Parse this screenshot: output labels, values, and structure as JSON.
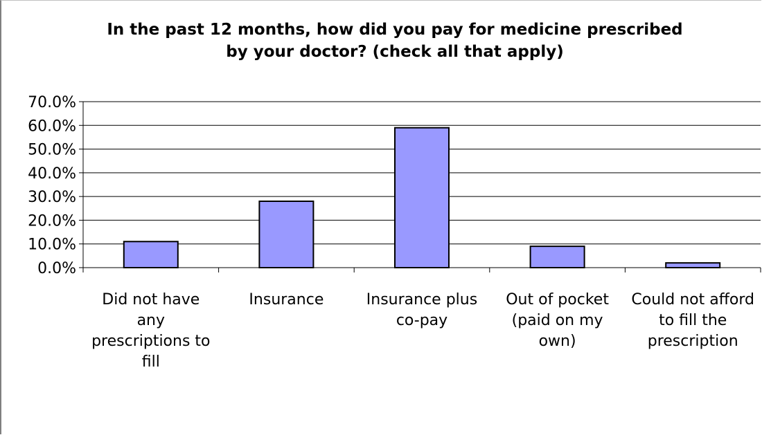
{
  "chart_data": {
    "type": "bar",
    "title": "In the past 12 months, how did you pay for medicine prescribed\nby your doctor? (check all that apply)",
    "categories": [
      [
        "Did not have",
        "any",
        "prescriptions to",
        "fill"
      ],
      [
        "Insurance"
      ],
      [
        "Insurance plus",
        "co-pay"
      ],
      [
        "Out of pocket",
        "(paid on my",
        "own)"
      ],
      [
        "Could not afford",
        "to fill the",
        "prescription"
      ]
    ],
    "values": [
      11.0,
      28.0,
      59.0,
      9.0,
      2.0
    ],
    "ylim": [
      0,
      70
    ],
    "ytick_step": 10,
    "ytick_format": "percent_1dp",
    "grid": true,
    "legend": "none",
    "bar_color": "#9999ff",
    "bar_edge_color": "#000000"
  }
}
